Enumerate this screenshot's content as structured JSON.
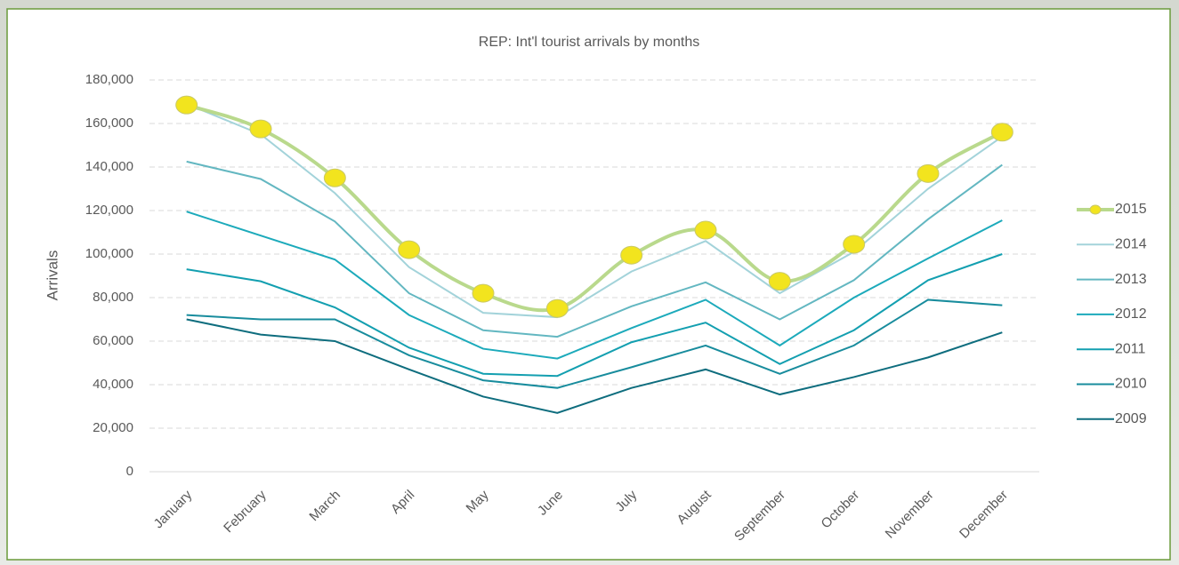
{
  "chart_data": {
    "type": "line",
    "title": "REP: Int'l tourist arrivals by months",
    "y_label": "Arrivals",
    "categories": [
      "January",
      "February",
      "March",
      "April",
      "May",
      "June",
      "July",
      "August",
      "September",
      "October",
      "November",
      "December"
    ],
    "series": [
      {
        "name": "2015",
        "color": "#b9d98c",
        "marker_color": "#f2e41e",
        "values": [
          168500,
          157500,
          135000,
          102000,
          82000,
          75000,
          99500,
          111000,
          87500,
          104500,
          137000,
          156000
        ]
      },
      {
        "name": "2014",
        "color": "#a3d3da",
        "values": [
          169000,
          155000,
          128000,
          94000,
          73000,
          71000,
          92000,
          106000,
          82000,
          101000,
          130000,
          154000
        ]
      },
      {
        "name": "2013",
        "color": "#63b7c1",
        "values": [
          142500,
          134500,
          115000,
          82000,
          65000,
          62000,
          76000,
          87000,
          70000,
          88000,
          116000,
          141000
        ]
      },
      {
        "name": "2012",
        "color": "#1caabb",
        "values": [
          119500,
          108500,
          97500,
          72000,
          56500,
          52000,
          66000,
          79000,
          58000,
          80000,
          98000,
          115500
        ]
      },
      {
        "name": "2011",
        "color": "#139fb0",
        "values": [
          93000,
          87500,
          75500,
          57000,
          45000,
          44000,
          59500,
          68500,
          49500,
          65000,
          88000,
          100000
        ]
      },
      {
        "name": "2010",
        "color": "#188c9d",
        "values": [
          72000,
          70000,
          70000,
          53500,
          42000,
          38500,
          48000,
          58000,
          45000,
          58000,
          79000,
          76500
        ]
      },
      {
        "name": "2009",
        "color": "#0e6d7e",
        "values": [
          70000,
          63000,
          60000,
          47000,
          34500,
          27000,
          38500,
          47000,
          35500,
          43500,
          52500,
          64000
        ]
      }
    ],
    "ylim": [
      0,
      180000
    ],
    "yticks": [
      0,
      {
        "value": 20000,
        "label": "20,000"
      },
      {
        "value": 40000,
        "label": "40,000"
      },
      {
        "value": 60000,
        "label": "60,000"
      },
      {
        "value": 80000,
        "label": "80,000"
      },
      {
        "value": 100000,
        "label": "100,000"
      },
      {
        "value": 120000,
        "label": "120,000"
      },
      {
        "value": 140000,
        "label": "140,000"
      },
      {
        "value": 160000,
        "label": "160,000"
      },
      {
        "value": 180000,
        "label": "180,000"
      }
    ],
    "grid": true,
    "legend": "right"
  }
}
